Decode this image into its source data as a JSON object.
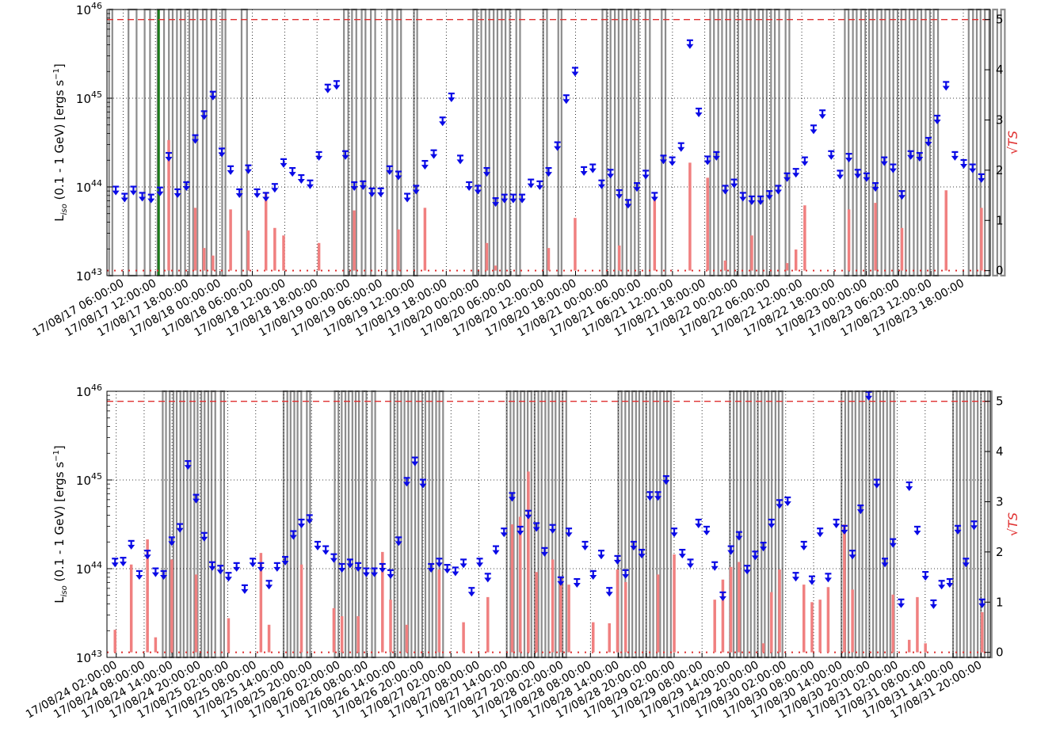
{
  "panels": [
    {
      "id": "top",
      "ylabel": "L$_{iso}$ (0.1 - 1 GeV) [ergs s$^{-1}$]",
      "ylabel_display": {
        "pre": "L",
        "sub": "iso",
        "mid": " (0.1 - 1 GeV) [ergs s",
        "sup": "−1",
        "post": "]"
      },
      "right_label": "√TS",
      "x_tick_labels": [
        "17/08/17 06:00:00",
        "17/08/17 12:00:00",
        "17/08/17 18:00:00",
        "17/08/18 00:00:00",
        "17/08/18 06:00:00",
        "17/08/18 12:00:00",
        "17/08/18 18:00:00",
        "17/08/19 00:00:00",
        "17/08/19 06:00:00",
        "17/08/19 12:00:00",
        "17/08/19 18:00:00",
        "17/08/20 00:00:00",
        "17/08/20 06:00:00",
        "17/08/20 12:00:00",
        "17/08/20 18:00:00",
        "17/08/21 00:00:00",
        "17/08/21 06:00:00",
        "17/08/21 12:00:00",
        "17/08/21 18:00:00",
        "17/08/22 00:00:00",
        "17/08/22 06:00:00",
        "17/08/22 12:00:00",
        "17/08/22 18:00:00",
        "17/08/23 00:00:00",
        "17/08/23 06:00:00",
        "17/08/23 12:00:00",
        "17/08/23 18:00:00"
      ],
      "y_tick_labels": [
        {
          "base": "10",
          "exp": "43"
        },
        {
          "base": "10",
          "exp": "44"
        },
        {
          "base": "10",
          "exp": "45"
        },
        {
          "base": "10",
          "exp": "46"
        }
      ],
      "right_tick_labels": [
        "0",
        "1",
        "2",
        "3",
        "4",
        "5"
      ]
    },
    {
      "id": "bottom",
      "ylabel": "L$_{iso}$ (0.1 - 1 GeV) [ergs s$^{-1}$]",
      "ylabel_display": {
        "pre": "L",
        "sub": "iso",
        "mid": " (0.1 - 1 GeV) [ergs s",
        "sup": "−1",
        "post": "]"
      },
      "right_label": "√TS",
      "x_tick_labels": [
        "17/08/24 02:00:00",
        "17/08/24 08:00:00",
        "17/08/24 14:00:00",
        "17/08/24 20:00:00",
        "17/08/25 02:00:00",
        "17/08/25 08:00:00",
        "17/08/25 14:00:00",
        "17/08/25 20:00:00",
        "17/08/26 02:00:00",
        "17/08/26 08:00:00",
        "17/08/26 14:00:00",
        "17/08/26 20:00:00",
        "17/08/27 02:00:00",
        "17/08/27 08:00:00",
        "17/08/27 14:00:00",
        "17/08/27 20:00:00",
        "17/08/28 02:00:00",
        "17/08/28 08:00:00",
        "17/08/28 14:00:00",
        "17/08/28 20:00:00",
        "17/08/29 02:00:00",
        "17/08/29 08:00:00",
        "17/08/29 14:00:00",
        "17/08/29 20:00:00",
        "17/08/30 02:00:00",
        "17/08/30 08:00:00",
        "17/08/30 14:00:00",
        "17/08/30 20:00:00",
        "17/08/31 02:00:00",
        "17/08/31 08:00:00",
        "17/08/31 14:00:00",
        "17/08/31 20:00:00"
      ],
      "y_tick_labels": [
        {
          "base": "10",
          "exp": "43"
        },
        {
          "base": "10",
          "exp": "44"
        },
        {
          "base": "10",
          "exp": "45"
        },
        {
          "base": "10",
          "exp": "46"
        }
      ],
      "right_tick_labels": [
        "0",
        "1",
        "2",
        "3",
        "4",
        "5"
      ]
    }
  ],
  "colors": {
    "upper_limit": "#0a0ae6",
    "ts_bar": "#f08080",
    "threshold": "#e03030",
    "gti_band": "#808080",
    "event_marker": "#1a7a1a"
  },
  "chart_data": [
    {
      "type": "scatter",
      "title": "",
      "xlabel": "",
      "x_range": [
        "17/08/17 03:00:00",
        "17/08/23 23:00:00"
      ],
      "x_unit": "hours since 17/08/17 00:00:00",
      "ylabel": "L_iso (0.1 - 1 GeV) [ergs s^-1]",
      "yscale": "log",
      "ylim": [
        1e+43,
        1e+46
      ],
      "y2label": "√TS",
      "y2lim": [
        -0.1,
        5.2
      ],
      "grid": true,
      "upper_limits_log10": [
        43.95,
        43.87,
        43.95,
        43.88,
        43.86,
        43.94,
        44.33,
        43.92,
        44.0,
        44.53,
        44.8,
        45.02,
        44.38,
        44.18,
        43.92,
        44.19,
        43.92,
        43.88,
        43.98,
        44.26,
        44.16,
        44.08,
        44.02,
        44.34,
        45.1,
        45.14,
        44.35,
        44.0,
        44.01,
        43.93,
        43.93,
        44.18,
        44.12,
        43.87,
        43.96,
        44.24,
        44.36,
        44.73,
        45.0,
        44.3,
        44.0,
        43.96,
        44.16,
        43.82,
        43.86,
        43.86,
        43.86,
        44.03,
        44.01,
        44.16,
        44.45,
        44.98,
        45.29,
        44.17,
        44.2,
        44.02,
        44.14,
        43.91,
        43.8,
        43.99,
        44.13,
        43.88,
        44.3,
        44.28,
        44.44,
        45.6,
        44.83,
        44.29,
        44.34,
        43.96,
        44.03,
        43.88,
        43.84,
        43.84,
        43.9,
        43.96,
        44.1,
        44.15,
        44.28,
        44.64,
        44.81,
        44.35,
        44.13,
        44.32,
        44.14,
        44.1,
        43.99,
        44.28,
        44.2,
        43.9,
        44.35,
        44.33,
        44.5,
        44.75,
        45.13,
        44.34,
        44.25,
        44.2,
        44.09
      ],
      "ts_sqrt": [
        0,
        0,
        0,
        0,
        0,
        0,
        2.6,
        0,
        0,
        1.25,
        0.45,
        0.3,
        0,
        1.22,
        0,
        0.8,
        0,
        1.55,
        0.85,
        0.7,
        0,
        0,
        0,
        0.55,
        0,
        0,
        0,
        1.2,
        0,
        0,
        0,
        0,
        0.82,
        0,
        0,
        1.25,
        0,
        0,
        0,
        0,
        0,
        0,
        0.55,
        0.1,
        0,
        0,
        0,
        0,
        0,
        0.45,
        0,
        0,
        1.05,
        0,
        0,
        0,
        0,
        0.5,
        0,
        0,
        0,
        1.48,
        0,
        0,
        0,
        2.15,
        0,
        1.85,
        0,
        0.2,
        0,
        0,
        0.7,
        0,
        0,
        0,
        0.15,
        0.42,
        1.3,
        0,
        0,
        0,
        0,
        1.22,
        0,
        0,
        1.35,
        0,
        0,
        0.85,
        0,
        0,
        0,
        0,
        1.6,
        0,
        0,
        0,
        1.25
      ],
      "gti_bands_hours": [
        [
          3.4,
          4.0
        ],
        [
          7.0,
          8.5
        ],
        [
          10.0,
          11.0
        ],
        [
          12.4,
          13.6
        ],
        [
          14.5,
          15.2
        ],
        [
          16.0,
          16.7
        ],
        [
          17.5,
          18.3
        ],
        [
          19.0,
          19.8
        ],
        [
          20.8,
          21.5
        ],
        [
          22.4,
          23.3
        ],
        [
          24.4,
          25.0
        ],
        [
          28.0,
          29.0
        ],
        [
          47.0,
          47.8
        ],
        [
          48.5,
          49.3
        ],
        [
          50.3,
          51.0
        ],
        [
          52.0,
          52.8
        ],
        [
          55.0,
          56.0
        ],
        [
          56.9,
          57.6
        ],
        [
          60.0,
          60.6
        ],
        [
          71.0,
          71.7
        ],
        [
          72.5,
          73.3
        ],
        [
          74.0,
          74.8
        ],
        [
          75.5,
          76.3
        ],
        [
          77.0,
          77.8
        ],
        [
          79.0,
          79.7
        ],
        [
          84.0,
          84.7
        ],
        [
          86.8,
          87.4
        ],
        [
          95.0,
          95.8
        ],
        [
          96.5,
          97.3
        ],
        [
          98.0,
          98.7
        ],
        [
          99.5,
          100.3
        ],
        [
          101.0,
          101.7
        ],
        [
          103.0,
          103.8
        ],
        [
          106.0,
          106.7
        ],
        [
          115.0,
          115.7
        ],
        [
          116.5,
          117.2
        ],
        [
          118.0,
          118.7
        ],
        [
          119.5,
          120.2
        ],
        [
          121.0,
          121.8
        ],
        [
          122.5,
          123.3
        ],
        [
          124.0,
          124.8
        ],
        [
          125.5,
          126.3
        ],
        [
          127.0,
          127.8
        ],
        [
          129.0,
          129.7
        ],
        [
          140.0,
          140.7
        ],
        [
          141.5,
          142.2
        ],
        [
          143.0,
          143.8
        ],
        [
          144.5,
          145.2
        ],
        [
          146.0,
          146.8
        ],
        [
          147.5,
          148.3
        ],
        [
          149.0,
          149.8
        ],
        [
          150.5,
          151.3
        ],
        [
          152.0,
          152.8
        ],
        [
          153.5,
          154.2
        ],
        [
          155.0,
          155.8
        ],
        [
          156.5,
          157.3
        ],
        [
          163.0,
          163.8
        ],
        [
          164.5,
          165.2
        ],
        [
          166.0,
          166.8
        ],
        [
          167.5,
          168.3
        ],
        [
          169.0,
          169.7
        ]
      ],
      "event_marker_hour": 12.6,
      "threshold_sqrt_ts": 5
    },
    {
      "type": "scatter",
      "title": "",
      "xlabel": "",
      "x_range": [
        "17/08/24 00:00:00",
        "17/08/31 23:00:00"
      ],
      "x_unit": "hours since 17/08/24 00:00:00",
      "ylabel": "L_iso (0.1 - 1 GeV) [ergs s^-1]",
      "yscale": "log",
      "ylim": [
        1e+43,
        1e+46
      ],
      "y2label": "√TS",
      "y2lim": [
        -0.1,
        5.2
      ],
      "grid": true,
      "upper_limits_log10": [
        44.06,
        44.07,
        44.26,
        43.92,
        44.15,
        43.95,
        43.92,
        44.3,
        44.45,
        45.16,
        44.78,
        44.35,
        44.02,
        43.98,
        43.9,
        44.01,
        43.76,
        44.06,
        44.01,
        43.81,
        44.01,
        44.08,
        44.37,
        44.5,
        44.55,
        44.25,
        44.2,
        44.11,
        44.0,
        44.05,
        44.01,
        43.95,
        43.95,
        44.0,
        43.93,
        44.3,
        44.97,
        45.2,
        44.95,
        44.0,
        44.06,
        43.99,
        43.96,
        44.05,
        43.73,
        44.06,
        43.89,
        44.2,
        44.4,
        44.8,
        44.42,
        44.6,
        44.46,
        44.18,
        44.44,
        43.85,
        44.4,
        43.83,
        44.25,
        43.92,
        44.15,
        43.73,
        44.09,
        43.93,
        44.25,
        44.16,
        44.81,
        44.81,
        44.99,
        44.4,
        44.16,
        44.05,
        44.5,
        44.42,
        44.02,
        43.68,
        44.2,
        44.36,
        43.98,
        44.14,
        44.24,
        44.5,
        44.72,
        44.75,
        43.9,
        44.25,
        43.86,
        44.4,
        43.89,
        44.5,
        44.43,
        44.15,
        44.66,
        45.94,
        44.95,
        44.06,
        44.28,
        43.6,
        44.92,
        44.42,
        43.91,
        43.59,
        43.81,
        43.83,
        44.43,
        44.06,
        44.48,
        43.6
      ],
      "ts_sqrt": [
        0.45,
        0,
        1.75,
        0,
        2.25,
        0.3,
        0,
        1.85,
        0,
        0,
        1.55,
        0,
        0,
        0,
        0.68,
        0,
        0,
        0,
        1.98,
        0.55,
        0,
        0,
        0,
        1.75,
        0,
        0,
        0,
        0.88,
        0.72,
        0,
        0.72,
        0,
        0,
        2.0,
        1.05,
        0,
        0.55,
        0,
        0,
        0,
        1.65,
        0,
        0,
        0.6,
        0,
        0,
        1.1,
        0,
        0,
        2.55,
        2.7,
        3.6,
        1.6,
        0,
        1.85,
        1.5,
        1.35,
        0,
        0,
        0.6,
        0,
        0.58,
        1.65,
        1.4,
        0,
        0,
        0,
        1.55,
        0,
        1.95,
        0,
        0,
        0,
        0,
        1.05,
        1.45,
        1.7,
        1.8,
        0,
        0,
        0.18,
        1.2,
        1.65,
        0,
        0,
        1.35,
        1.0,
        1.05,
        1.3,
        0,
        2.55,
        1.25,
        0,
        0,
        0,
        0,
        1.15,
        0,
        0.25,
        1.1,
        0.18,
        0,
        0,
        0,
        0,
        0,
        0,
        0.8
      ],
      "gti_bands_hours": [
        [
          12.0,
          12.7
        ],
        [
          13.5,
          14.3
        ],
        [
          15.0,
          15.8
        ],
        [
          16.5,
          17.3
        ],
        [
          18.0,
          18.8
        ],
        [
          19.5,
          20.3
        ],
        [
          21.0,
          21.8
        ],
        [
          22.5,
          23.3
        ],
        [
          24.5,
          25.2
        ],
        [
          38.0,
          38.8
        ],
        [
          39.5,
          40.3
        ],
        [
          41.0,
          41.8
        ],
        [
          43.0,
          43.7
        ],
        [
          49.0,
          49.8
        ],
        [
          50.5,
          51.3
        ],
        [
          52.0,
          52.8
        ],
        [
          53.5,
          54.2
        ],
        [
          55.0,
          55.8
        ],
        [
          57.0,
          57.7
        ],
        [
          61.0,
          61.8
        ],
        [
          62.5,
          63.3
        ],
        [
          64.0,
          64.8
        ],
        [
          65.5,
          66.3
        ],
        [
          67.0,
          67.8
        ],
        [
          68.5,
          69.3
        ],
        [
          70.0,
          70.8
        ],
        [
          71.5,
          72.3
        ],
        [
          86.0,
          86.8
        ],
        [
          87.5,
          88.3
        ],
        [
          89.0,
          89.8
        ],
        [
          90.5,
          91.3
        ],
        [
          92.0,
          92.8
        ],
        [
          93.5,
          94.3
        ],
        [
          95.0,
          95.8
        ],
        [
          96.5,
          97.3
        ],
        [
          98.0,
          98.8
        ],
        [
          110.0,
          110.7
        ],
        [
          111.5,
          112.3
        ],
        [
          113.0,
          113.8
        ],
        [
          114.5,
          115.3
        ],
        [
          116.0,
          116.8
        ],
        [
          117.5,
          118.3
        ],
        [
          119.0,
          119.8
        ],
        [
          120.5,
          121.3
        ],
        [
          134.0,
          134.8
        ],
        [
          135.5,
          136.3
        ],
        [
          137.0,
          137.8
        ],
        [
          138.5,
          139.3
        ],
        [
          140.0,
          140.8
        ],
        [
          141.5,
          142.3
        ],
        [
          143.0,
          143.8
        ],
        [
          144.5,
          145.3
        ],
        [
          158.0,
          158.8
        ],
        [
          159.5,
          160.3
        ],
        [
          161.0,
          161.8
        ],
        [
          162.5,
          163.3
        ],
        [
          164.0,
          164.8
        ],
        [
          165.5,
          166.3
        ],
        [
          167.0,
          167.8
        ],
        [
          168.5,
          169.3
        ],
        [
          182.0,
          182.8
        ],
        [
          183.5,
          184.3
        ],
        [
          185.0,
          185.8
        ],
        [
          186.5,
          187.3
        ],
        [
          188.0,
          188.8
        ],
        [
          189.5,
          190.3
        ]
      ],
      "threshold_sqrt_ts": 5
    }
  ]
}
